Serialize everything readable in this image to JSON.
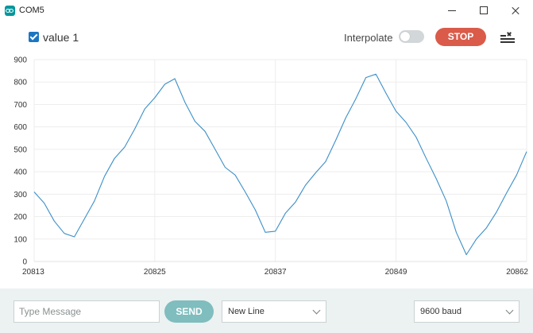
{
  "window": {
    "title": "COM5",
    "icon": "arduino-icon"
  },
  "toolbar": {
    "series_label": "value 1",
    "series_checked": true,
    "interpolate_label": "Interpolate",
    "interpolate_on": false,
    "stop_label": "STOP",
    "clear_icon": "clear-list-icon"
  },
  "colors": {
    "line": "#3c8fc8",
    "stop": "#da5b4a",
    "send": "#7fbdbe",
    "checkbox": "#1b76c2",
    "bottom_bar": "#ecf1f1"
  },
  "chart_data": {
    "type": "line",
    "ylim": [
      0,
      900
    ],
    "y_ticks": [
      "0",
      "100",
      "200",
      "300",
      "400",
      "500",
      "600",
      "700",
      "800",
      "900"
    ],
    "x_range": [
      20813,
      20862
    ],
    "x_ticks": [
      "20813",
      "20825",
      "20837",
      "20849",
      "20862"
    ],
    "grid": true,
    "series": [
      {
        "name": "value 1",
        "x": [
          20813,
          20814,
          20815,
          20816,
          20817,
          20818,
          20819,
          20820,
          20821,
          20822,
          20823,
          20824,
          20825,
          20826,
          20827,
          20828,
          20829,
          20830,
          20831,
          20832,
          20833,
          20834,
          20835,
          20836,
          20837,
          20838,
          20839,
          20840,
          20841,
          20842,
          20843,
          20844,
          20845,
          20846,
          20847,
          20848,
          20849,
          20850,
          20851,
          20852,
          20853,
          20854,
          20855,
          20856,
          20857,
          20858,
          20859,
          20860,
          20861,
          20862
        ],
        "values": [
          310,
          260,
          180,
          125,
          110,
          190,
          270,
          380,
          460,
          510,
          590,
          680,
          730,
          790,
          815,
          710,
          625,
          580,
          500,
          420,
          385,
          310,
          230,
          130,
          135,
          215,
          265,
          340,
          395,
          445,
          540,
          640,
          725,
          820,
          835,
          750,
          670,
          620,
          555,
          460,
          370,
          270,
          130,
          30,
          100,
          150,
          220,
          305,
          385,
          490
        ]
      }
    ]
  },
  "bottom": {
    "message_placeholder": "Type Message",
    "message_value": "",
    "send_label": "SEND",
    "line_ending": "New Line",
    "baud_rate": "9600 baud"
  }
}
